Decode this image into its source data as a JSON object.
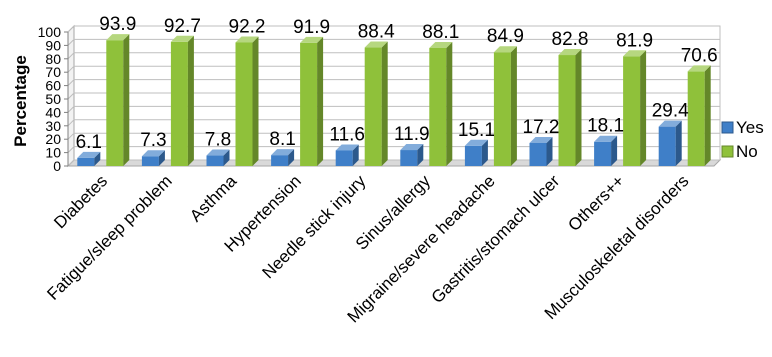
{
  "chart_data": {
    "type": "bar",
    "orientation": "vertical",
    "style": "3d-clustered",
    "title": "",
    "xlabel": "",
    "ylabel": "Percentage",
    "ylim": [
      0,
      100
    ],
    "yticks": [
      0,
      10,
      20,
      30,
      40,
      50,
      60,
      70,
      80,
      90,
      100
    ],
    "grid": true,
    "legend_position": "right",
    "categories": [
      "Diabetes",
      "Fatigue/sleep problem",
      "Asthma",
      "Hypertension",
      "Needle stick injury",
      "Sinus/allergy",
      "Migraine/severe headache",
      "Gastritis/stomach ulcer",
      "Others++",
      "Musculoskeletal disorders"
    ],
    "series": [
      {
        "name": "Yes",
        "color": "#3f7fc8",
        "values": [
          6.1,
          7.3,
          7.8,
          8.1,
          11.6,
          11.9,
          15.1,
          17.2,
          18.1,
          29.4
        ]
      },
      {
        "name": "No",
        "color": "#8fc13a",
        "values": [
          93.9,
          92.7,
          92.2,
          91.9,
          88.4,
          88.1,
          84.9,
          82.8,
          81.9,
          70.6
        ]
      }
    ]
  }
}
